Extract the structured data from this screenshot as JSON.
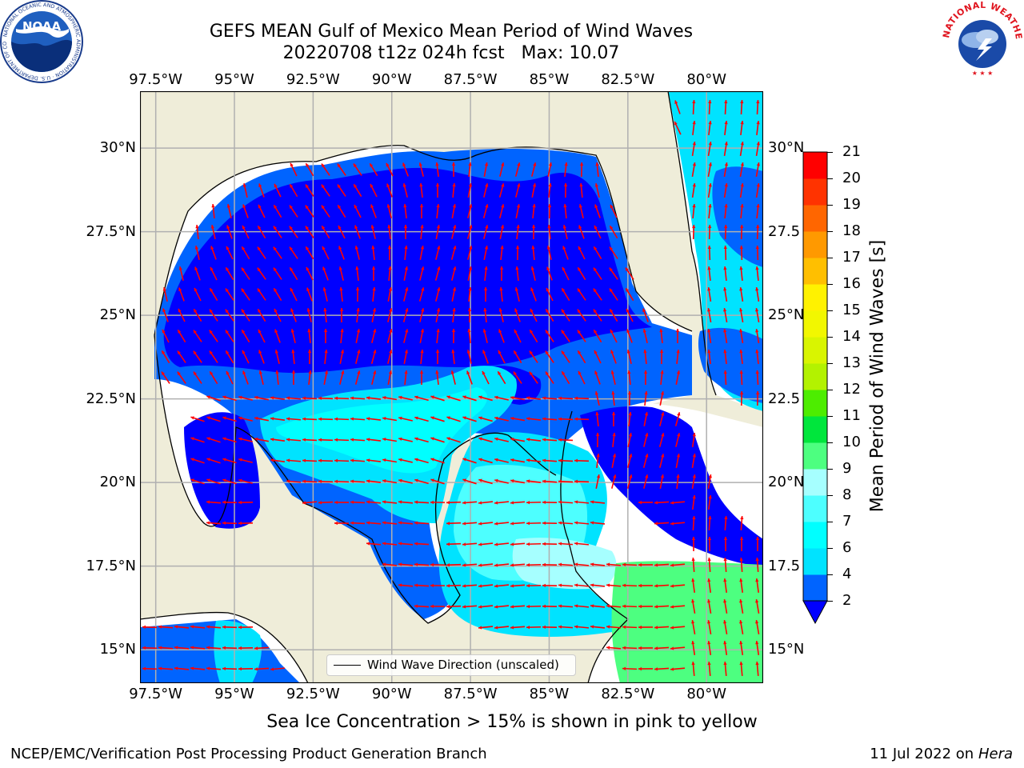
{
  "title": {
    "line1": "GEFS MEAN Gulf of Mexico Mean Period of Wind Waves",
    "line2": "20220708 t12z 024h fcst   Max: 10.07"
  },
  "map": {
    "lon_range": [
      -98.0,
      -78.2
    ],
    "lat_range": [
      14.0,
      31.7
    ],
    "lon_ticks": [
      "97.5°W",
      "95°W",
      "92.5°W",
      "90°W",
      "87.5°W",
      "85°W",
      "82.5°W",
      "80°W"
    ],
    "lon_tick_values": [
      -97.5,
      -95,
      -92.5,
      -90,
      -87.5,
      -85,
      -82.5,
      -80
    ],
    "lat_ticks_left": [
      "30°N",
      "27.5°N",
      "25°N",
      "22.5°N",
      "20°N",
      "17.5°N",
      "15°N"
    ],
    "lat_ticks_right": [
      "30°N",
      "27.5",
      "25°N",
      "22.5",
      "20°N",
      "17.5",
      "15°N"
    ],
    "lat_tick_values": [
      30,
      27.5,
      25,
      22.5,
      20,
      17.5,
      15
    ],
    "land_color": "#efedd9",
    "arrow_color": "#ff0000",
    "grid_color": "#b0b0b0"
  },
  "legend": {
    "label": "Wind Wave Direction (unscaled)"
  },
  "colorbar": {
    "label": "Mean Period of Wind Waves [s]",
    "ticks": [
      "2",
      "4",
      "6",
      "7",
      "8",
      "9",
      "10",
      "11",
      "12",
      "13",
      "14",
      "15",
      "16",
      "17",
      "18",
      "19",
      "20",
      "21"
    ],
    "bands": [
      {
        "from": 2,
        "to": 4,
        "color": "#0064ff"
      },
      {
        "from": 4,
        "to": 6,
        "color": "#00e3ff"
      },
      {
        "from": 6,
        "to": 7,
        "color": "#00ffff"
      },
      {
        "from": 7,
        "to": 8,
        "color": "#4dffff"
      },
      {
        "from": 8,
        "to": 9,
        "color": "#a6ffff"
      },
      {
        "from": 9,
        "to": 10,
        "color": "#4dff80"
      },
      {
        "from": 10,
        "to": 11,
        "color": "#00e63c"
      },
      {
        "from": 11,
        "to": 12,
        "color": "#4ded00"
      },
      {
        "from": 12,
        "to": 13,
        "color": "#b3f200"
      },
      {
        "from": 13,
        "to": 14,
        "color": "#d9f500"
      },
      {
        "from": 14,
        "to": 15,
        "color": "#f2f700"
      },
      {
        "from": 15,
        "to": 16,
        "color": "#fff200"
      },
      {
        "from": 16,
        "to": 17,
        "color": "#ffbf00"
      },
      {
        "from": 17,
        "to": 18,
        "color": "#ff9900"
      },
      {
        "from": 18,
        "to": 19,
        "color": "#ff6600"
      },
      {
        "from": 19,
        "to": 20,
        "color": "#ff3300"
      },
      {
        "from": 20,
        "to": 21,
        "color": "#ff0000"
      }
    ],
    "under_color": "#0000ff"
  },
  "footnote": "Sea Ice Concentration > 15% is shown in pink to yellow",
  "credit": "NCEP/EMC/Verification Post Processing Product Generation Branch",
  "date": {
    "text": "11 Jul 2022 on ",
    "host": "Hera"
  },
  "logos": {
    "noaa": {
      "text": "NOAA",
      "ring_text": "NATIONAL OCEANIC AND ATMOSPHERIC ADMINISTRATION · U.S. DEPARTMENT OF COMMERCE"
    },
    "nws": {
      "ring_text": "NATIONAL WEATHER SERVICE"
    }
  }
}
